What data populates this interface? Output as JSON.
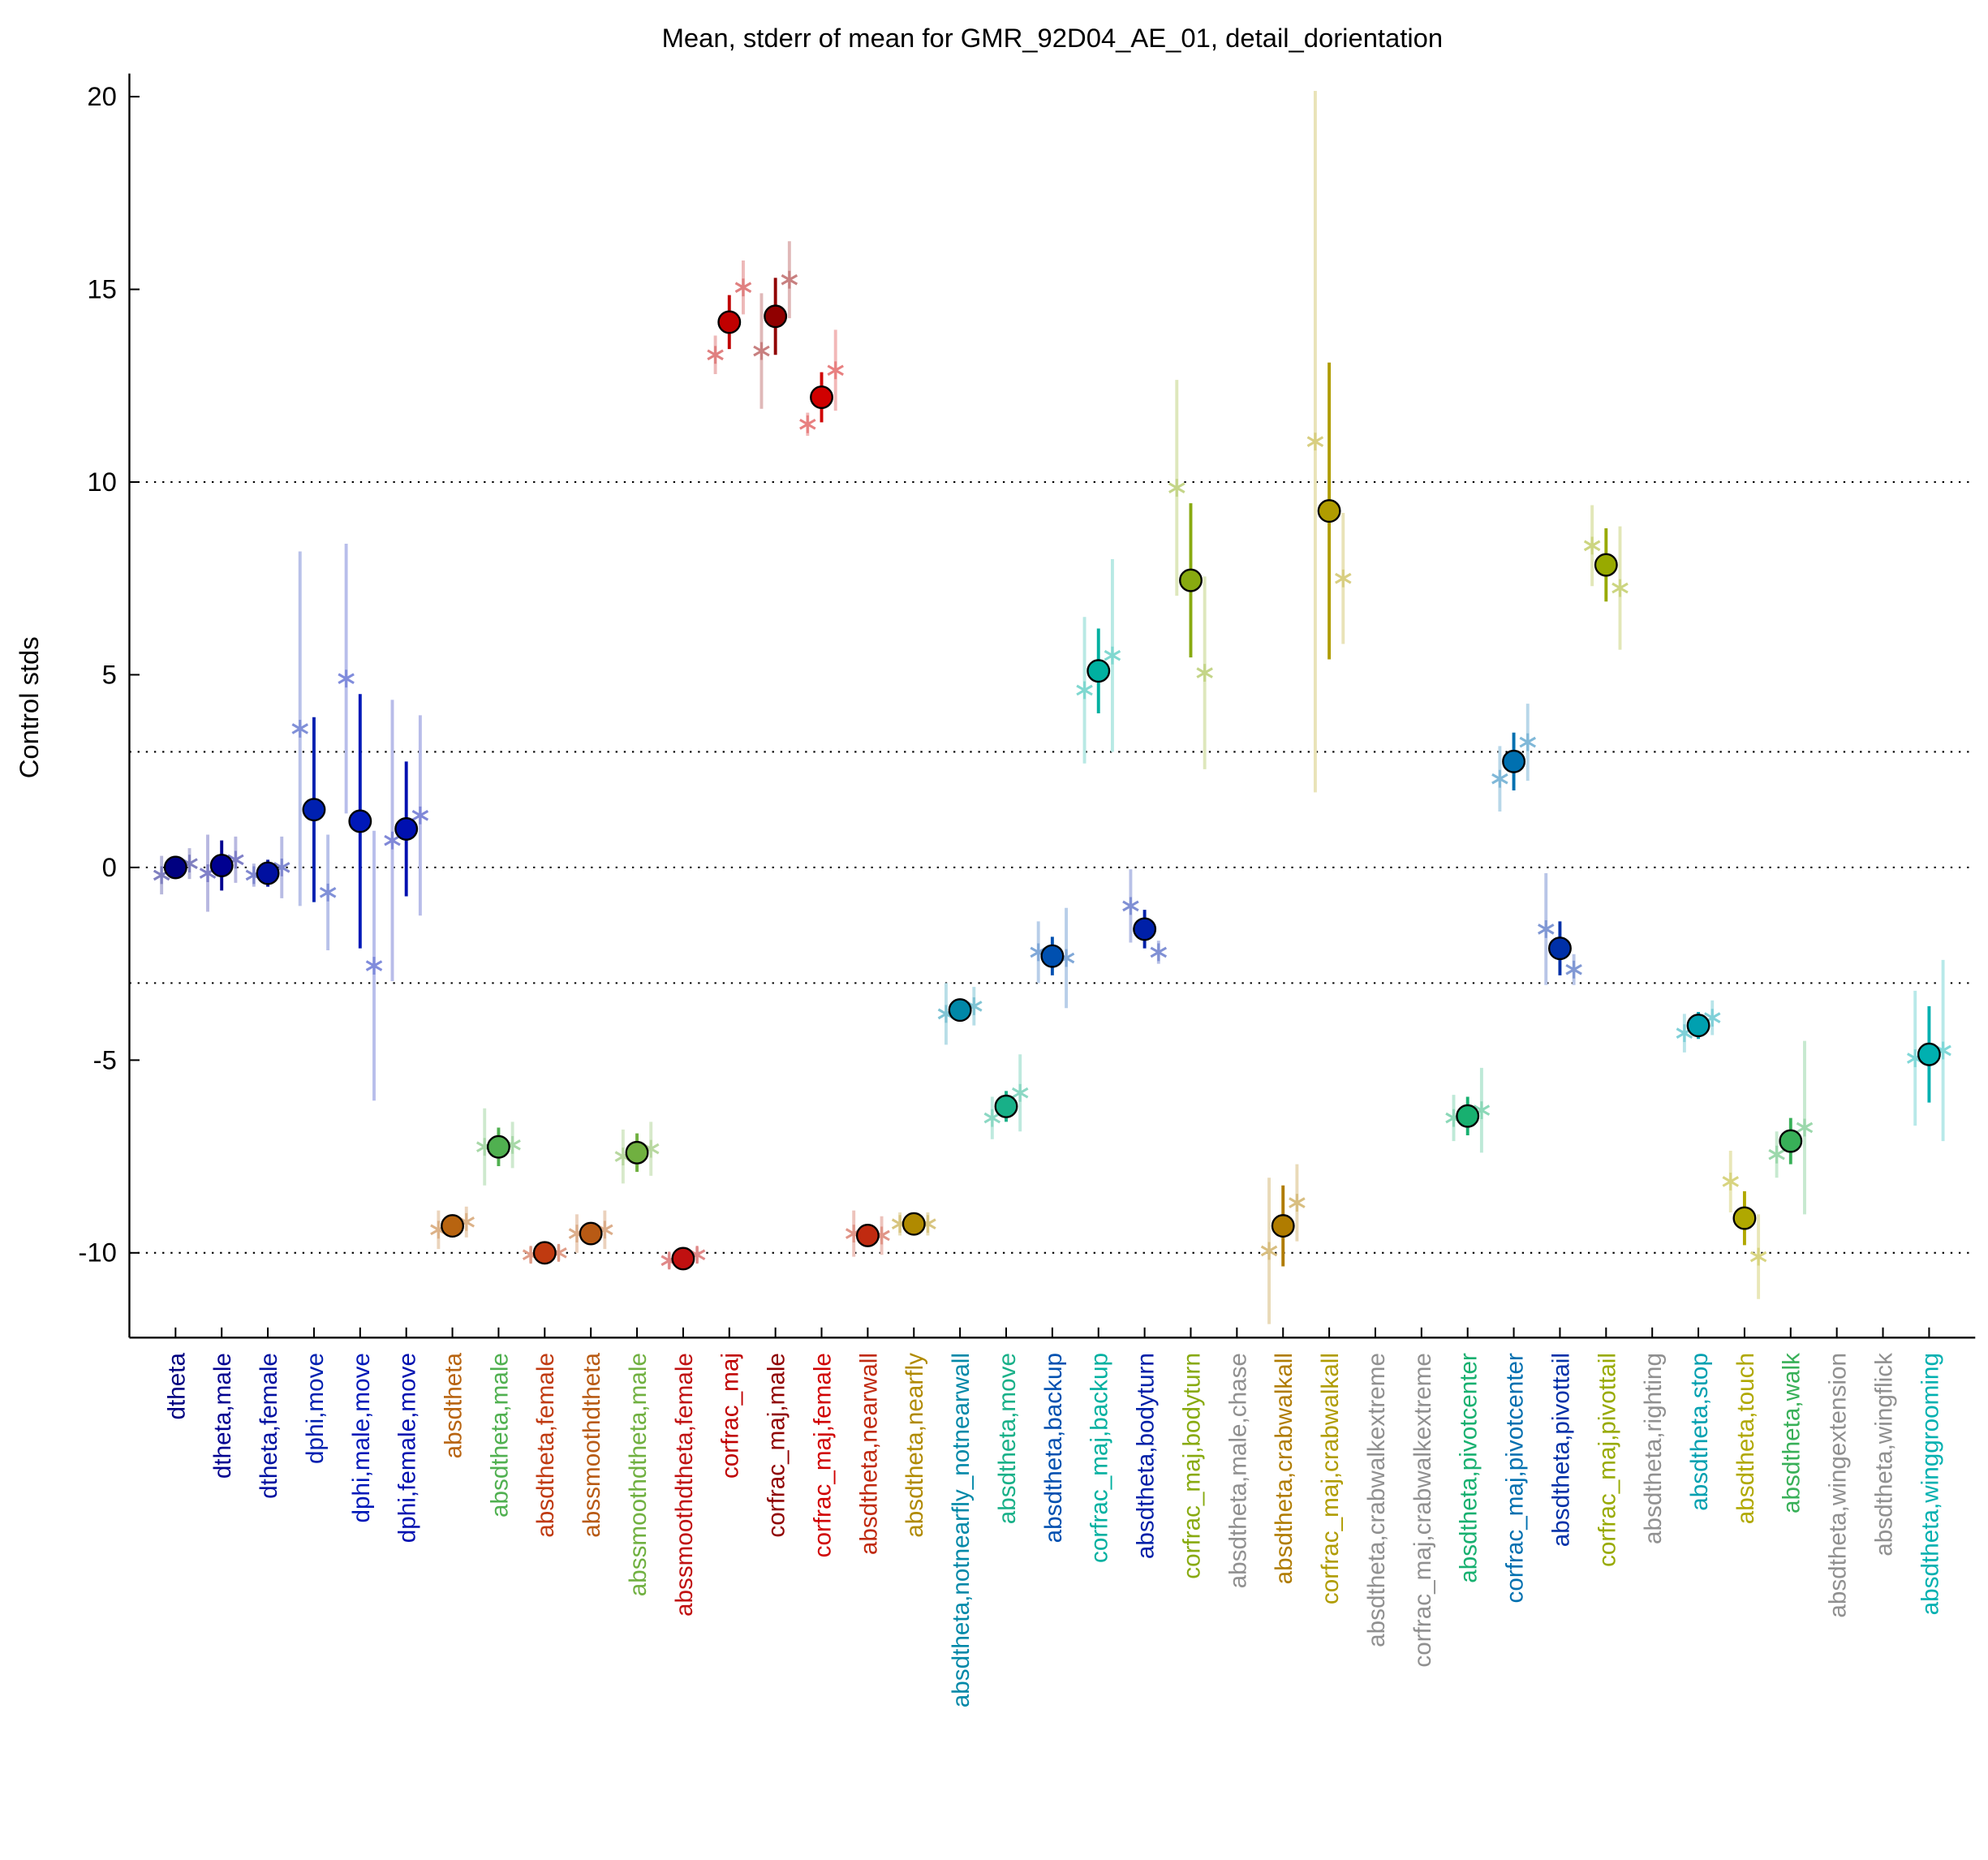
{
  "chart_data": {
    "type": "errorbar",
    "title": "Mean, stderr of mean for GMR_92D04_AE_01, detail_dorientation",
    "y_label": "Control stds",
    "categories": [
      "dtheta",
      "dtheta,male",
      "dtheta,female",
      "dphi,move",
      "dphi,male,move",
      "dphi,female,move",
      "absdtheta",
      "absdtheta,male",
      "absdtheta,female",
      "abssmoothdtheta",
      "abssmoothdtheta,male",
      "abssmoothdtheta,female",
      "corfrac_maj",
      "corfrac_maj,male",
      "corfrac_maj,female",
      "absdtheta,nearwall",
      "absdtheta,nearfly",
      "absdtheta,notnearfly_notnearwall",
      "absdtheta,move",
      "absdtheta,backup",
      "corfrac_maj,backup",
      "absdtheta,bodyturn",
      "corfrac_maj,bodyturn",
      "absdtheta,male,chase",
      "absdtheta,crabwalkall",
      "corfrac_maj,crabwalkall",
      "absdtheta,crabwalkextreme",
      "corfrac_maj,crabwalkextreme",
      "absdtheta,pivotcenter",
      "corfrac_maj,pivotcenter",
      "absdtheta,pivottail",
      "corfrac_maj,pivottail",
      "absdtheta,righting",
      "absdtheta,stop",
      "absdtheta,touch",
      "absdtheta,walk",
      "absdtheta,wingextension",
      "absdtheta,wingflick",
      "absdtheta,winggrooming"
    ],
    "colors": [
      "#000080",
      "#000090",
      "#0010a0",
      "#0020b0",
      "#0018b8",
      "#0010b0",
      "#b86410",
      "#50b050",
      "#c03a10",
      "#b85a14",
      "#70b040",
      "#c01010",
      "#c00000",
      "#900000",
      "#d00000",
      "#c02a10",
      "#b08a00",
      "#0088a8",
      "#18b088",
      "#0050b0",
      "#00b0a0",
      "#0020a8",
      "#88aa10",
      "#909090",
      "#b07c00",
      "#b09c00",
      "#909090",
      "#909090",
      "#18b070",
      "#0070b0",
      "#0030a8",
      "#98aa00",
      "#909090",
      "#00a0b0",
      "#b0a800",
      "#38b058",
      "#909090",
      "#909090",
      "#00b0b0"
    ],
    "values": [
      0,
      0.05,
      -0.15,
      1.5,
      1.2,
      1.0,
      -9.3,
      -7.25,
      -10.0,
      -9.5,
      -7.4,
      -10.15,
      14.15,
      14.3,
      12.2,
      -9.55,
      -9.25,
      -3.7,
      -6.2,
      -2.3,
      5.1,
      -1.6,
      7.45,
      null,
      -9.3,
      9.25,
      null,
      null,
      -6.45,
      2.75,
      -2.1,
      7.85,
      null,
      -4.1,
      -9.1,
      -7.1,
      null,
      null,
      -4.85
    ],
    "errors": [
      0.3,
      0.65,
      0.35,
      2.4,
      3.3,
      1.75,
      0.15,
      0.5,
      0.15,
      0.15,
      0.5,
      0.15,
      0.7,
      1.0,
      0.65,
      0.25,
      0.15,
      0.3,
      0.4,
      0.5,
      1.1,
      0.5,
      2.0,
      null,
      1.05,
      3.85,
      null,
      null,
      0.5,
      0.75,
      0.7,
      0.95,
      null,
      0.35,
      0.7,
      0.6,
      null,
      null,
      1.25
    ],
    "male_values": [
      -0.2,
      -0.15,
      -0.2,
      3.6,
      4.9,
      0.7,
      -9.4,
      -7.25,
      -10.05,
      -9.5,
      -7.5,
      -10.2,
      13.3,
      13.4,
      11.5,
      -9.5,
      -9.25,
      -3.8,
      -6.5,
      -2.2,
      4.6,
      -1.0,
      9.85,
      null,
      -9.95,
      11.05,
      null,
      null,
      -6.5,
      2.3,
      -1.6,
      8.35,
      null,
      -4.3,
      -8.15,
      -7.45,
      null,
      null,
      -4.95
    ],
    "male_errors": [
      0.5,
      1.0,
      0.3,
      4.6,
      3.5,
      3.65,
      0.5,
      1.0,
      0.2,
      0.5,
      0.7,
      0.2,
      0.5,
      1.5,
      0.3,
      0.6,
      0.3,
      0.8,
      0.55,
      0.8,
      1.9,
      0.95,
      2.8,
      null,
      1.9,
      9.1,
      null,
      null,
      0.6,
      0.85,
      1.45,
      1.05,
      null,
      0.5,
      0.8,
      0.6,
      null,
      null,
      1.75
    ],
    "female_values": [
      0.1,
      0.2,
      0.0,
      -0.65,
      -2.55,
      1.35,
      -9.2,
      -7.2,
      -10.0,
      -9.4,
      -7.3,
      -10.05,
      15.05,
      15.25,
      12.9,
      -9.55,
      -9.25,
      -3.6,
      -5.85,
      -2.35,
      5.5,
      -2.2,
      5.05,
      null,
      -8.7,
      7.5,
      null,
      null,
      -6.3,
      3.25,
      -2.65,
      7.25,
      null,
      -3.9,
      -10.1,
      -6.75,
      null,
      null,
      -4.75
    ],
    "female_errors": [
      0.4,
      0.6,
      0.8,
      1.5,
      3.5,
      2.6,
      0.4,
      0.6,
      0.2,
      0.5,
      0.7,
      0.2,
      0.7,
      1.0,
      1.05,
      0.5,
      0.3,
      0.5,
      1.0,
      1.3,
      2.5,
      0.3,
      2.5,
      null,
      1.0,
      1.7,
      null,
      null,
      1.1,
      1.0,
      0.4,
      1.6,
      null,
      0.45,
      1.1,
      2.25,
      null,
      null,
      2.35
    ],
    "ylim": [
      -12.2,
      20.6
    ],
    "yticks": [
      -10,
      -5,
      0,
      5,
      10,
      15,
      20
    ],
    "reference_lines": [
      -10,
      -3,
      0,
      3,
      10
    ]
  }
}
